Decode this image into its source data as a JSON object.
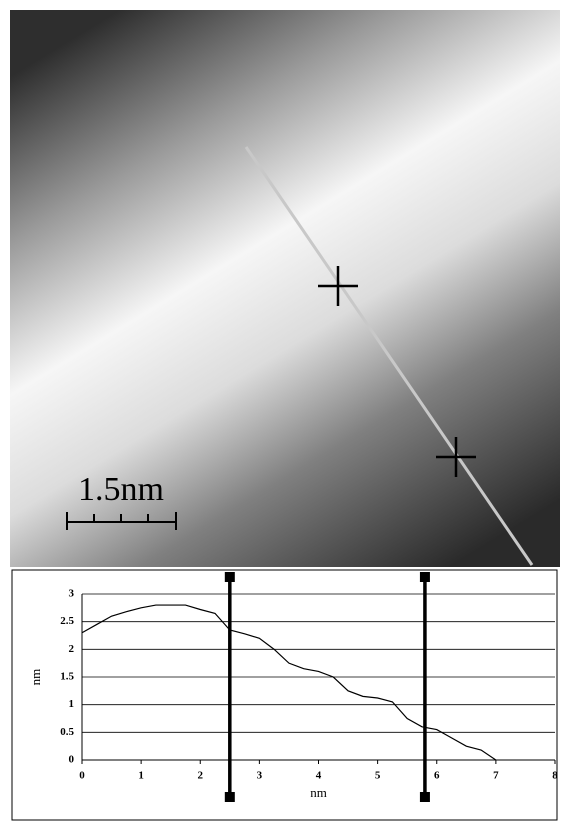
{
  "image": {
    "scale_label": "1.5nm"
  },
  "chart_data": {
    "type": "line",
    "x_label": "nm",
    "y_label": "nm",
    "x": [
      0,
      0.25,
      0.5,
      0.75,
      1,
      1.25,
      1.5,
      1.75,
      2,
      2.25,
      2.5,
      2.75,
      3,
      3.25,
      3.5,
      3.75,
      4,
      4.25,
      4.5,
      4.75,
      5,
      5.25,
      5.5,
      5.75,
      6,
      6.25,
      6.5,
      6.75,
      7
    ],
    "values": [
      2.3,
      2.45,
      2.6,
      2.68,
      2.75,
      2.8,
      2.8,
      2.8,
      2.72,
      2.65,
      2.35,
      2.28,
      2.2,
      2.0,
      1.75,
      1.65,
      1.6,
      1.5,
      1.25,
      1.15,
      1.12,
      1.05,
      0.75,
      0.6,
      0.55,
      0.4,
      0.25,
      0.18,
      0
    ],
    "color": "#000000",
    "markers": [
      2.5,
      5.8
    ],
    "xlim": [
      0,
      8
    ],
    "xticks": [
      0,
      1,
      2,
      3,
      4,
      5,
      6,
      7,
      8
    ],
    "ylim": [
      0,
      3
    ],
    "yticks": [
      0,
      0.5,
      1,
      1.5,
      2,
      2.5,
      3
    ],
    "grid": true
  }
}
